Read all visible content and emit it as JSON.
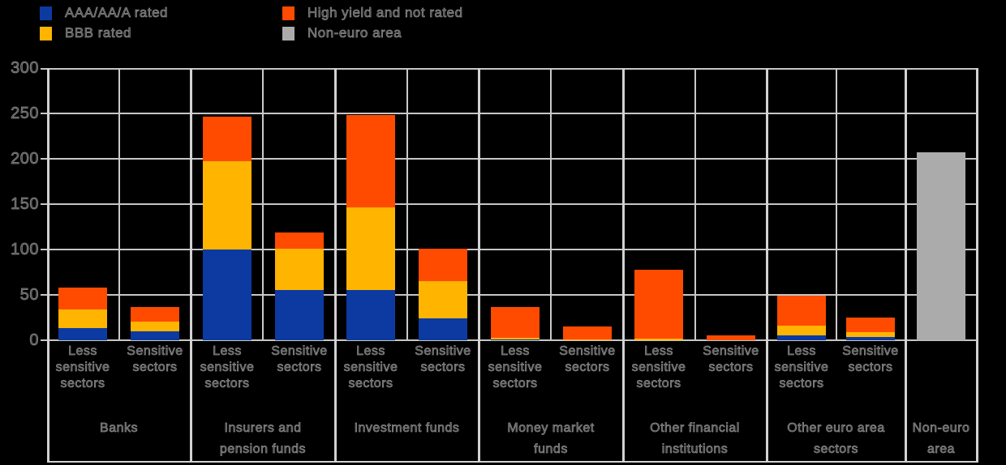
{
  "legend": {
    "items": [
      {
        "label": "AAA/AA/A rated",
        "color": "#0c3aa1"
      },
      {
        "label": "BBB rated",
        "color": "#ffb400"
      },
      {
        "label": "High yield and not rated",
        "color": "#ff4b00"
      },
      {
        "label": "Non-euro area",
        "color": "#ababab"
      }
    ]
  },
  "axis": {
    "y_ticks": [
      0,
      50,
      100,
      150,
      200,
      250,
      300
    ],
    "y_max": 300
  },
  "chart_data": {
    "type": "bar",
    "stacked": true,
    "title": "",
    "xlabel": "",
    "ylabel": "",
    "ylim": [
      0,
      300
    ],
    "grid": true,
    "legend_position": "top-left",
    "series": [
      {
        "key": "aaa_aa_a_rated",
        "name": "AAA/AA/A rated",
        "color": "#0c3aa1"
      },
      {
        "key": "bbb_rated",
        "name": "BBB rated",
        "color": "#ffb400"
      },
      {
        "key": "high_yield_and_not_rated",
        "name": "High yield and not rated",
        "color": "#ff4b00"
      },
      {
        "key": "non_euro_area",
        "name": "Non-euro area",
        "color": "#ababab"
      }
    ],
    "groups": [
      {
        "label": "Banks",
        "columns": [
          {
            "label": "Less sensitive sectors",
            "values": {
              "aaa_aa_a_rated": 13,
              "bbb_rated": 21,
              "high_yield_and_not_rated": 24
            }
          },
          {
            "label": "Sensitive sectors",
            "values": {
              "aaa_aa_a_rated": 10,
              "bbb_rated": 11,
              "high_yield_and_not_rated": 16
            }
          }
        ]
      },
      {
        "label": "Insurers and pension funds",
        "columns": [
          {
            "label": "Less sensitive sectors",
            "values": {
              "aaa_aa_a_rated": 100,
              "bbb_rated": 97,
              "high_yield_and_not_rated": 49
            }
          },
          {
            "label": "Sensitive sectors",
            "values": {
              "aaa_aa_a_rated": 55,
              "bbb_rated": 46,
              "high_yield_and_not_rated": 18
            }
          }
        ]
      },
      {
        "label": "Investment funds",
        "columns": [
          {
            "label": "Less sensitive sectors",
            "values": {
              "aaa_aa_a_rated": 55,
              "bbb_rated": 91,
              "high_yield_and_not_rated": 102
            }
          },
          {
            "label": "Sensitive sectors",
            "values": {
              "aaa_aa_a_rated": 24,
              "bbb_rated": 41,
              "high_yield_and_not_rated": 36
            }
          }
        ]
      },
      {
        "label": "Money market funds",
        "columns": [
          {
            "label": "Less sensitive sectors",
            "values": {
              "aaa_aa_a_rated": 1,
              "bbb_rated": 2,
              "high_yield_and_not_rated": 34
            }
          },
          {
            "label": "Sensitive sectors",
            "values": {
              "aaa_aa_a_rated": 0,
              "bbb_rated": 1,
              "high_yield_and_not_rated": 14
            }
          }
        ]
      },
      {
        "label": "Other financial institutions",
        "columns": [
          {
            "label": "Less sensitive sectors",
            "values": {
              "aaa_aa_a_rated": 0,
              "bbb_rated": 2,
              "high_yield_and_not_rated": 76
            }
          },
          {
            "label": "Sensitive sectors",
            "values": {
              "aaa_aa_a_rated": 0,
              "bbb_rated": 0,
              "high_yield_and_not_rated": 5
            }
          }
        ]
      },
      {
        "label": "Other euro area sectors",
        "columns": [
          {
            "label": "Less sensitive sectors",
            "values": {
              "aaa_aa_a_rated": 5,
              "bbb_rated": 11,
              "high_yield_and_not_rated": 33
            }
          },
          {
            "label": "Sensitive sectors",
            "values": {
              "aaa_aa_a_rated": 4,
              "bbb_rated": 5,
              "high_yield_and_not_rated": 16
            }
          }
        ]
      },
      {
        "label": "Non-euro area",
        "columns": [
          {
            "label": "",
            "values": {
              "non_euro_area": 207
            }
          }
        ]
      }
    ]
  }
}
